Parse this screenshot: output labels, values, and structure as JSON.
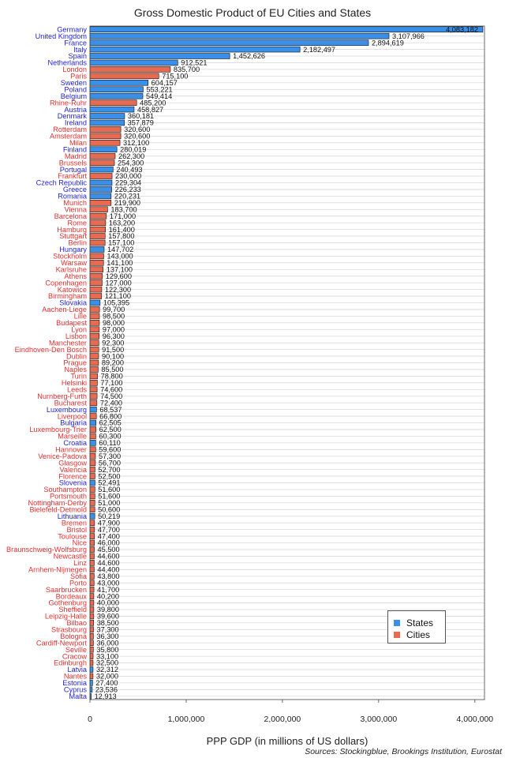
{
  "title": "Gross Domestic Product of EU Cities and States",
  "x_axis_label": "PPP GDP (in millions of US dollars)",
  "source": "Sources: Stockingblue, Brookings Institution, Eurostat",
  "colors": {
    "state": "#3a8fe8",
    "city": "#e86a50",
    "state_label": "#1f1fcf",
    "city_label": "#e03030"
  },
  "legend": {
    "states": "States",
    "cities": "Cities"
  },
  "chart_data": {
    "type": "bar",
    "orientation": "horizontal",
    "title": "Gross Domestic Product of EU Cities and States",
    "xlabel": "PPP GDP (in millions of US dollars)",
    "xlim": [
      0,
      4100000
    ],
    "xticks": [
      "0",
      "1,000,000",
      "2,000,000",
      "3,000,000",
      "4,000,000"
    ],
    "xtick_values": [
      0,
      1000000,
      2000000,
      3000000,
      4000000
    ],
    "grid": "horizontal gridlines",
    "legend_position": "bottom-right",
    "series": [
      {
        "name": "States"
      },
      {
        "name": "Cities"
      }
    ],
    "bars": [
      {
        "label": "Germany",
        "value": 4083182,
        "text": "4,083,182",
        "kind": "state"
      },
      {
        "label": "United Kingdom",
        "value": 3107966,
        "text": "3,107,966",
        "kind": "state"
      },
      {
        "label": "France",
        "value": 2894619,
        "text": "2,894,619",
        "kind": "state"
      },
      {
        "label": "Italy",
        "value": 2182497,
        "text": "2,182,497",
        "kind": "state"
      },
      {
        "label": "Spain",
        "value": 1452626,
        "text": "1,452,626",
        "kind": "state"
      },
      {
        "label": "Netherlands",
        "value": 912521,
        "text": "912,521",
        "kind": "state"
      },
      {
        "label": "London",
        "value": 835700,
        "text": "835,700",
        "kind": "city"
      },
      {
        "label": "Paris",
        "value": 715100,
        "text": "715,100",
        "kind": "city"
      },
      {
        "label": "Sweden",
        "value": 604157,
        "text": "604,157",
        "kind": "state"
      },
      {
        "label": "Poland",
        "value": 553221,
        "text": "553,221",
        "kind": "state"
      },
      {
        "label": "Belgium",
        "value": 549414,
        "text": "549,414",
        "kind": "state"
      },
      {
        "label": "Rhine-Ruhr",
        "value": 485200,
        "text": "485,200",
        "kind": "city"
      },
      {
        "label": "Austria",
        "value": 458827,
        "text": "458,827",
        "kind": "state"
      },
      {
        "label": "Denmark",
        "value": 360181,
        "text": "360,181",
        "kind": "state"
      },
      {
        "label": "Ireland",
        "value": 357879,
        "text": "357,879",
        "kind": "state"
      },
      {
        "label": "Rotterdam",
        "value": 320600,
        "text": "320,600",
        "kind": "city"
      },
      {
        "label": "Amsterdam",
        "value": 320600,
        "text": "320,600",
        "kind": "city"
      },
      {
        "label": "Milan",
        "value": 312100,
        "text": "312,100",
        "kind": "city"
      },
      {
        "label": "Finland",
        "value": 280019,
        "text": "280,019",
        "kind": "state"
      },
      {
        "label": "Madrid",
        "value": 262300,
        "text": "262,300",
        "kind": "city"
      },
      {
        "label": "Brussels",
        "value": 254300,
        "text": "254,300",
        "kind": "city"
      },
      {
        "label": "Portugal",
        "value": 240493,
        "text": "240,493",
        "kind": "state"
      },
      {
        "label": "Frankfurt",
        "value": 230000,
        "text": "230,000",
        "kind": "city"
      },
      {
        "label": "Czech Republic",
        "value": 229304,
        "text": "229,304",
        "kind": "state"
      },
      {
        "label": "Greece",
        "value": 226233,
        "text": "226,233",
        "kind": "state"
      },
      {
        "label": "Romania",
        "value": 220231,
        "text": "220,231",
        "kind": "state"
      },
      {
        "label": "Munich",
        "value": 219900,
        "text": "219,900",
        "kind": "city"
      },
      {
        "label": "Vienna",
        "value": 183700,
        "text": "183,700",
        "kind": "city"
      },
      {
        "label": "Barcelona",
        "value": 171000,
        "text": "171,000",
        "kind": "city"
      },
      {
        "label": "Rome",
        "value": 163200,
        "text": "163,200",
        "kind": "city"
      },
      {
        "label": "Hamburg",
        "value": 161400,
        "text": "161,400",
        "kind": "city"
      },
      {
        "label": "Stuttgart",
        "value": 157800,
        "text": "157,800",
        "kind": "city"
      },
      {
        "label": "Berlin",
        "value": 157100,
        "text": "157,100",
        "kind": "city"
      },
      {
        "label": "Hungary",
        "value": 147702,
        "text": "147,702",
        "kind": "state"
      },
      {
        "label": "Stockholm",
        "value": 143000,
        "text": "143,000",
        "kind": "city"
      },
      {
        "label": "Warsaw",
        "value": 141100,
        "text": "141,100",
        "kind": "city"
      },
      {
        "label": "Karlsruhe",
        "value": 137100,
        "text": "137,100",
        "kind": "city"
      },
      {
        "label": "Athens",
        "value": 129600,
        "text": "129,600",
        "kind": "city"
      },
      {
        "label": "Copenhagen",
        "value": 127000,
        "text": "127,000",
        "kind": "city"
      },
      {
        "label": "Katowice",
        "value": 122300,
        "text": "122,300",
        "kind": "city"
      },
      {
        "label": "Birmingham",
        "value": 121100,
        "text": "121,100",
        "kind": "city"
      },
      {
        "label": "Slovakia",
        "value": 105395,
        "text": "105,395",
        "kind": "state"
      },
      {
        "label": "Aachen-Liege",
        "value": 99700,
        "text": "99,700",
        "kind": "city"
      },
      {
        "label": "Lille",
        "value": 98500,
        "text": "98,500",
        "kind": "city"
      },
      {
        "label": "Budapest",
        "value": 98000,
        "text": "98,000",
        "kind": "city"
      },
      {
        "label": "Lyon",
        "value": 97000,
        "text": "97,000",
        "kind": "city"
      },
      {
        "label": "Lisbon",
        "value": 96300,
        "text": "96,300",
        "kind": "city"
      },
      {
        "label": "Manchester",
        "value": 92300,
        "text": "92,300",
        "kind": "city"
      },
      {
        "label": "Eindhoven-Den Bosch",
        "value": 91500,
        "text": "91,500",
        "kind": "city"
      },
      {
        "label": "Dublin",
        "value": 90100,
        "text": "90,100",
        "kind": "city"
      },
      {
        "label": "Prague",
        "value": 89200,
        "text": "89,200",
        "kind": "city"
      },
      {
        "label": "Naples",
        "value": 85500,
        "text": "85,500",
        "kind": "city"
      },
      {
        "label": "Turin",
        "value": 78800,
        "text": "78,800",
        "kind": "city"
      },
      {
        "label": "Helsinki",
        "value": 77100,
        "text": "77,100",
        "kind": "city"
      },
      {
        "label": "Leeds",
        "value": 74600,
        "text": "74,600",
        "kind": "city"
      },
      {
        "label": "Nurnberg-Furth",
        "value": 74500,
        "text": "74,500",
        "kind": "city"
      },
      {
        "label": "Bucharest",
        "value": 72400,
        "text": "72,400",
        "kind": "city"
      },
      {
        "label": "Luxembourg",
        "value": 68537,
        "text": "68,537",
        "kind": "state"
      },
      {
        "label": "Liverpool",
        "value": 66800,
        "text": "66,800",
        "kind": "city"
      },
      {
        "label": "Bulgaria",
        "value": 62505,
        "text": "62,505",
        "kind": "state"
      },
      {
        "label": "Luxembourg-Trier",
        "value": 62500,
        "text": "62,500",
        "kind": "city"
      },
      {
        "label": "Marseille",
        "value": 60300,
        "text": "60,300",
        "kind": "city"
      },
      {
        "label": "Croatia",
        "value": 60110,
        "text": "60,110",
        "kind": "state"
      },
      {
        "label": "Hannover",
        "value": 59600,
        "text": "59,600",
        "kind": "city"
      },
      {
        "label": "Venice-Padova",
        "value": 57300,
        "text": "57,300",
        "kind": "city"
      },
      {
        "label": "Glasgow",
        "value": 56700,
        "text": "56,700",
        "kind": "city"
      },
      {
        "label": "Valencia",
        "value": 52700,
        "text": "52,700",
        "kind": "city"
      },
      {
        "label": "Florence",
        "value": 52500,
        "text": "52,500",
        "kind": "city"
      },
      {
        "label": "Slovenia",
        "value": 52491,
        "text": "52,491",
        "kind": "state"
      },
      {
        "label": "Southampton",
        "value": 51600,
        "text": "51,600",
        "kind": "city"
      },
      {
        "label": "Portsmouth",
        "value": 51600,
        "text": "51,600",
        "kind": "city"
      },
      {
        "label": "Nottingham-Derby",
        "value": 51000,
        "text": "51,000",
        "kind": "city"
      },
      {
        "label": "Bielefeld-Detmold",
        "value": 50600,
        "text": "50,600",
        "kind": "city"
      },
      {
        "label": "Lithuania",
        "value": 50219,
        "text": "50,219",
        "kind": "state"
      },
      {
        "label": "Bremen",
        "value": 47900,
        "text": "47,900",
        "kind": "city"
      },
      {
        "label": "Bristol",
        "value": 47700,
        "text": "47,700",
        "kind": "city"
      },
      {
        "label": "Toulouse",
        "value": 47400,
        "text": "47,400",
        "kind": "city"
      },
      {
        "label": "Nice",
        "value": 46000,
        "text": "46,000",
        "kind": "city"
      },
      {
        "label": "Braunschweig-Wolfsburg",
        "value": 45500,
        "text": "45,500",
        "kind": "city"
      },
      {
        "label": "Newcastle",
        "value": 44600,
        "text": "44,600",
        "kind": "city"
      },
      {
        "label": "Linz",
        "value": 44600,
        "text": "44,600",
        "kind": "city"
      },
      {
        "label": "Arnhem-Nijmegen",
        "value": 44400,
        "text": "44,400",
        "kind": "city"
      },
      {
        "label": "Sofia",
        "value": 43800,
        "text": "43,800",
        "kind": "city"
      },
      {
        "label": "Porto",
        "value": 43000,
        "text": "43,000",
        "kind": "city"
      },
      {
        "label": "Saarbrucken",
        "value": 41700,
        "text": "41,700",
        "kind": "city"
      },
      {
        "label": "Bordeaux",
        "value": 40200,
        "text": "40,200",
        "kind": "city"
      },
      {
        "label": "Gothenburg",
        "value": 40000,
        "text": "40,000",
        "kind": "city"
      },
      {
        "label": "Sheffield",
        "value": 39800,
        "text": "39,800",
        "kind": "city"
      },
      {
        "label": "Leipzig-Halle",
        "value": 39600,
        "text": "39,600",
        "kind": "city"
      },
      {
        "label": "Bilbao",
        "value": 38500,
        "text": "38,500",
        "kind": "city"
      },
      {
        "label": "Strasbourg",
        "value": 37300,
        "text": "37,300",
        "kind": "city"
      },
      {
        "label": "Bologna",
        "value": 36300,
        "text": "36,300",
        "kind": "city"
      },
      {
        "label": "Cardiff-Newport",
        "value": 36000,
        "text": "36,000",
        "kind": "city"
      },
      {
        "label": "Seville",
        "value": 35800,
        "text": "35,800",
        "kind": "city"
      },
      {
        "label": "Cracow",
        "value": 33100,
        "text": "33,100",
        "kind": "city"
      },
      {
        "label": "Edinburgh",
        "value": 32500,
        "text": "32,500",
        "kind": "city"
      },
      {
        "label": "Latvia",
        "value": 32312,
        "text": "32,312",
        "kind": "state"
      },
      {
        "label": "Nantes",
        "value": 32000,
        "text": "32,000",
        "kind": "city"
      },
      {
        "label": "Estonia",
        "value": 27400,
        "text": "27,400",
        "kind": "state"
      },
      {
        "label": "Cyprus",
        "value": 23536,
        "text": "23,536",
        "kind": "state"
      },
      {
        "label": "Malta",
        "value": 12913,
        "text": "12,913",
        "kind": "state"
      }
    ]
  }
}
